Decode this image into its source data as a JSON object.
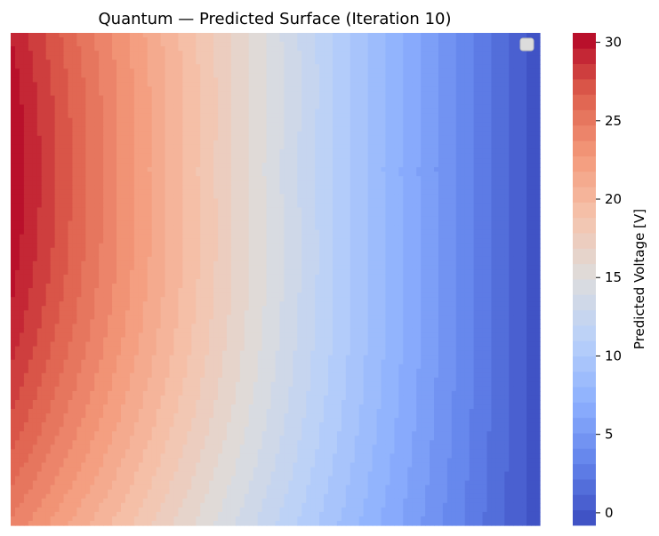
{
  "chart_data": {
    "type": "heatmap",
    "title": "Quantum — Predicted Surface (Iteration 10)",
    "colorbar": {
      "label": "Predicted Voltage [V]",
      "ticks": [
        0,
        5,
        10,
        15,
        20,
        25,
        30
      ],
      "range": [
        -0.8,
        30.6
      ],
      "levels": 32,
      "colormap": "coolwarm"
    },
    "surface": {
      "description_values": {
        "left_edge_max": 30.5,
        "left_edge_top": 24.5,
        "left_edge_bottom": 24.5,
        "right_edge": -0.5
      },
      "x_range": [
        0,
        1
      ],
      "y_range": [
        0,
        1
      ]
    },
    "legend": {
      "position": "top-right",
      "entries": []
    },
    "axes": {
      "x_ticks_visible": false,
      "y_ticks_visible": false,
      "grid": false
    }
  }
}
